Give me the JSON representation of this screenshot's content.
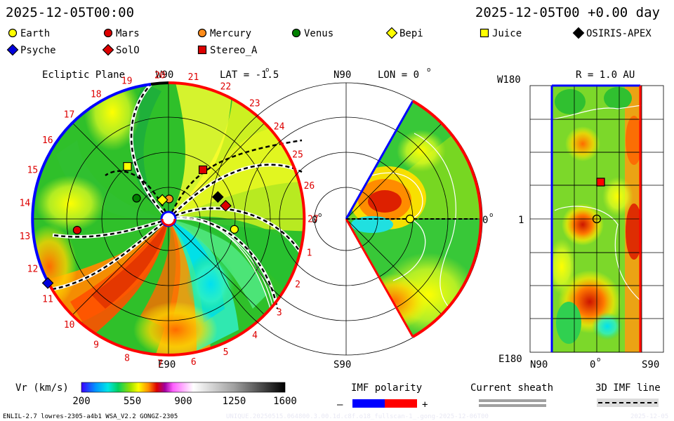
{
  "header": {
    "datetime_left": "2025-12-05T00:00",
    "datetime_right": "2025-12-05T00 +0.00 day"
  },
  "legend": [
    {
      "name": "Earth",
      "shape": "circle",
      "color": "#ffff00"
    },
    {
      "name": "Mars",
      "shape": "circle",
      "color": "#dd0000"
    },
    {
      "name": "Mercury",
      "shape": "circle",
      "color": "#ff8c1a"
    },
    {
      "name": "Venus",
      "shape": "circle",
      "color": "#008000"
    },
    {
      "name": "Bepi",
      "shape": "diamond",
      "color": "#ffff00"
    },
    {
      "name": "Juice",
      "shape": "square",
      "color": "#ffff00"
    },
    {
      "name": "OSIRIS-APEX",
      "shape": "diamond",
      "color": "#000000"
    },
    {
      "name": "Psyche",
      "shape": "diamond",
      "color": "#0000dd"
    },
    {
      "name": "SolO",
      "shape": "diamond",
      "color": "#dd0000"
    },
    {
      "name": "Stereo_A",
      "shape": "square",
      "color": "#dd0000"
    }
  ],
  "ecliptic": {
    "title": "Ecliptic Plane",
    "lat_label": "LAT = -1.5",
    "label_top": "W90",
    "label_bottom": "E90",
    "label_right": "0",
    "carrington_numbers": [
      "1",
      "2",
      "3",
      "4",
      "5",
      "6",
      "7",
      "8",
      "9",
      "10",
      "11",
      "12",
      "13",
      "14",
      "15",
      "16",
      "17",
      "18",
      "19",
      "20",
      "21",
      "22",
      "23",
      "24",
      "25",
      "26",
      "27"
    ]
  },
  "meridional": {
    "label_n": "N90",
    "label_s": "S90",
    "lon_label": "LON = 0",
    "label_right": "0"
  },
  "radial": {
    "title": "R = 1.0 AU",
    "label_w": "W180",
    "label_e": "E180",
    "label_mid": "1",
    "label_n": "N90",
    "label_zero": "0",
    "label_s": "S90"
  },
  "colorbar": {
    "title": "Vr (km/s)",
    "ticks": [
      "200",
      "550",
      "900",
      "1250",
      "1600"
    ]
  },
  "imf": {
    "title": "IMF polarity",
    "minus": "–",
    "plus": "+",
    "neg_color": "#0000ff",
    "pos_color": "#ff0000"
  },
  "sheath": {
    "title": "Current sheath"
  },
  "imfline": {
    "title": "3D IMF line"
  },
  "footer": {
    "model": "ENLIL-2.7 lowres-2305-a4b1 WSA_V2.2 GONGZ-2305",
    "run": "UNIQUE.20250515.064800.3.00.1d.c8f.o18_fullscan-1_.gong-2025-12-06T00",
    "stamp": "2025-12-05"
  },
  "chart_data": [
    {
      "type": "polar-contour",
      "title": "Ecliptic Plane",
      "variable": "Vr (km/s)",
      "range": [
        200,
        1600
      ],
      "objects": [
        {
          "name": "Earth",
          "angle_deg": -9,
          "r_au": 1.0
        },
        {
          "name": "Mercury",
          "angle_deg": 88,
          "r_au": 0.3
        },
        {
          "name": "Bepi",
          "angle_deg": 108,
          "r_au": 0.3
        },
        {
          "name": "Venus",
          "angle_deg": 147,
          "r_au": 0.57
        },
        {
          "name": "Juice",
          "angle_deg": 128,
          "r_au": 1.0
        },
        {
          "name": "Mars",
          "angle_deg": 187,
          "r_au": 1.38
        },
        {
          "name": "Psyche",
          "angle_deg": 208,
          "r_au": 2.05
        },
        {
          "name": "Stereo_A",
          "angle_deg": 55,
          "r_au": 0.9
        },
        {
          "name": "OSIRIS-APEX",
          "angle_deg": 24,
          "r_au": 0.81
        },
        {
          "name": "SolO",
          "angle_deg": 13,
          "r_au": 0.88
        }
      ]
    },
    {
      "type": "polar-contour",
      "title": "Meridional Plane LON = 0",
      "variable": "Vr (km/s)",
      "objects": [
        {
          "name": "Earth",
          "lat_deg": -1.5,
          "r_au": 1.0
        }
      ]
    },
    {
      "type": "heatmap",
      "title": "R = 1.0 AU",
      "x_range": [
        "N90",
        "S90"
      ],
      "y_range": [
        "W180",
        "E180"
      ],
      "objects": [
        {
          "name": "Earth",
          "lat_deg": 0,
          "lon_deg": 0
        },
        {
          "name": "Stereo_A",
          "lat_deg": -8,
          "lon_deg": 55
        }
      ]
    }
  ]
}
